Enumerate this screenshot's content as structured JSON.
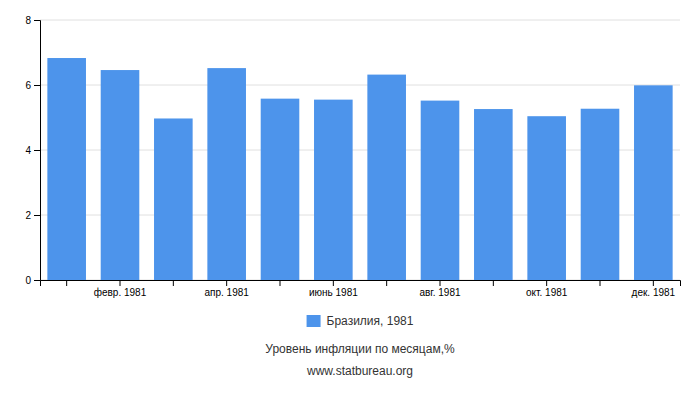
{
  "chart_data": {
    "type": "bar",
    "categories": [
      null,
      "февр. 1981",
      null,
      "апр. 1981",
      null,
      "июнь 1981",
      null,
      "авг. 1981",
      null,
      "окт. 1981",
      null,
      "дек. 1981"
    ],
    "series": [
      {
        "name": "Бразилия, 1981",
        "color": "#4d94eb",
        "values": [
          6.83,
          6.46,
          4.97,
          6.52,
          5.58,
          5.55,
          6.32,
          5.52,
          5.26,
          5.04,
          5.27,
          5.99
        ]
      }
    ],
    "ylim": [
      0,
      8
    ],
    "yticks": [
      0,
      2,
      4,
      6,
      8
    ],
    "grid": true,
    "legend": "bottom",
    "xlabel": "Уровень инфляции по месяцам,%",
    "annotations": [
      "www.statbureau.org"
    ]
  }
}
